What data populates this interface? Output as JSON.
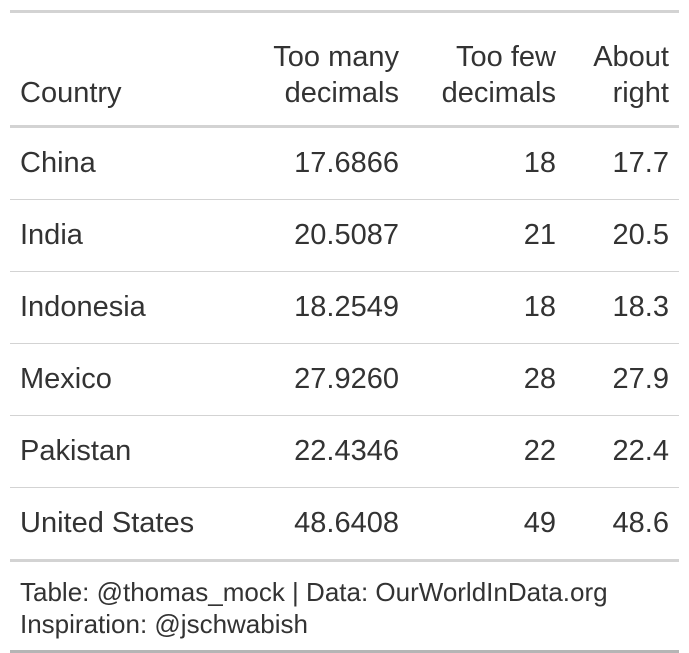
{
  "table": {
    "columns": [
      {
        "line1": "",
        "line2": "Country"
      },
      {
        "line1": "Too many",
        "line2": "decimals"
      },
      {
        "line1": "Too few",
        "line2": "decimals"
      },
      {
        "line1": "About",
        "line2": "right"
      }
    ],
    "rows": [
      {
        "country": "China",
        "too_many": "17.6866",
        "too_few": "18",
        "about_right": "17.7"
      },
      {
        "country": "India",
        "too_many": "20.5087",
        "too_few": "21",
        "about_right": "20.5"
      },
      {
        "country": "Indonesia",
        "too_many": "18.2549",
        "too_few": "18",
        "about_right": "18.3"
      },
      {
        "country": "Mexico",
        "too_many": "27.9260",
        "too_few": "28",
        "about_right": "27.9"
      },
      {
        "country": "Pakistan",
        "too_many": "22.4346",
        "too_few": "22",
        "about_right": "22.4"
      },
      {
        "country": "United States",
        "too_many": "48.6408",
        "too_few": "49",
        "about_right": "48.6"
      }
    ]
  },
  "source_notes": {
    "line1": "Table: @thomas_mock | Data: OurWorldInData.org",
    "line2": "Inspiration: @jschwabish"
  },
  "colors": {
    "text": "#333333",
    "rule": "#d3d3d3"
  }
}
